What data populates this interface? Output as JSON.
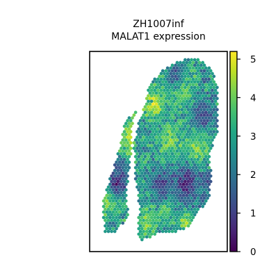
{
  "chart_data": {
    "type": "scatter",
    "subtype": "spatial spot expression map (hexagonal grid)",
    "title": "ZH1007inf",
    "subtitle": "MALAT1 expression",
    "xlabel": "",
    "ylabel": "",
    "axes_ticks_visible": false,
    "grid": false,
    "colormap": "viridis",
    "colorbar": {
      "min": 0,
      "max": 5.2,
      "ticks": [
        0,
        1,
        2,
        3,
        4,
        5
      ],
      "tick_labels": [
        "0",
        "1",
        "2",
        "3",
        "4",
        "5"
      ],
      "placement": "right"
    },
    "series": [
      {
        "tissue_regions": [
          {
            "region": "left strip",
            "outline": [
              [
                0.44,
                0.24
              ],
              [
                0.26,
                0.34
              ],
              [
                0.21,
                0.5
              ],
              [
                0.09,
                0.76
              ],
              [
                0.11,
                0.9
              ],
              [
                0.2,
                0.9
              ],
              [
                0.28,
                0.82
              ],
              [
                0.27,
                0.7
              ],
              [
                0.3,
                0.52
              ],
              [
                0.3,
                0.38
              ],
              [
                0.36,
                0.28
              ],
              [
                0.47,
                0.25
              ]
            ],
            "hotspots": [
              {
                "center": [
                  0.33,
                  0.44
                ],
                "radius": 0.12,
                "value": 4.6
              },
              {
                "center": [
                  0.16,
                  0.72
                ],
                "radius": 0.09,
                "value": 4.7
              },
              {
                "center": [
                  0.36,
                  0.27
                ],
                "radius": 0.06,
                "value": 4.4
              },
              {
                "center": [
                  0.2,
                  0.66
                ],
                "radius": 0.08,
                "value": 0.6
              },
              {
                "center": [
                  0.22,
                  0.58
                ],
                "radius": 0.06,
                "value": 1.4
              }
            ]
          },
          {
            "region": "main body",
            "outline": [
              [
                0.37,
                0.95
              ],
              [
                0.52,
                0.9
              ],
              [
                0.62,
                0.9
              ],
              [
                0.72,
                0.88
              ],
              [
                0.8,
                0.8
              ],
              [
                0.87,
                0.72
              ],
              [
                0.89,
                0.62
              ],
              [
                0.87,
                0.52
              ],
              [
                0.93,
                0.4
              ],
              [
                0.93,
                0.18
              ],
              [
                0.9,
                0.1
              ],
              [
                0.8,
                0.04
              ],
              [
                0.68,
                0.04
              ],
              [
                0.55,
                0.08
              ],
              [
                0.43,
                0.17
              ],
              [
                0.41,
                0.25
              ],
              [
                0.36,
                0.35
              ],
              [
                0.32,
                0.46
              ],
              [
                0.33,
                0.62
              ],
              [
                0.36,
                0.78
              ],
              [
                0.35,
                0.9
              ]
            ],
            "hotspots": [
              {
                "center": [
                  0.47,
                  0.26
                ],
                "radius": 0.08,
                "value": 4.8
              },
              {
                "center": [
                  0.78,
                  0.48
                ],
                "radius": 0.09,
                "value": 4.3
              },
              {
                "center": [
                  0.58,
                  0.45
                ],
                "radius": 0.09,
                "value": 4.0
              },
              {
                "center": [
                  0.68,
                  0.2
                ],
                "radius": 0.09,
                "value": 3.8
              },
              {
                "center": [
                  0.42,
                  0.86
                ],
                "radius": 0.07,
                "value": 4.2
              },
              {
                "center": [
                  0.7,
                  0.85
                ],
                "radius": 0.06,
                "value": 4.3
              },
              {
                "center": [
                  0.55,
                  0.8
                ],
                "radius": 0.06,
                "value": 4.0
              },
              {
                "center": [
                  0.7,
                  0.66
                ],
                "radius": 0.1,
                "value": 0.7
              },
              {
                "center": [
                  0.52,
                  0.66
                ],
                "radius": 0.08,
                "value": 1.0
              },
              {
                "center": [
                  0.82,
                  0.32
                ],
                "radius": 0.08,
                "value": 1.2
              },
              {
                "center": [
                  0.62,
                  0.12
                ],
                "radius": 0.06,
                "value": 1.4
              },
              {
                "center": [
                  0.86,
                  0.66
                ],
                "radius": 0.06,
                "value": 1.3
              }
            ]
          }
        ]
      }
    ]
  }
}
